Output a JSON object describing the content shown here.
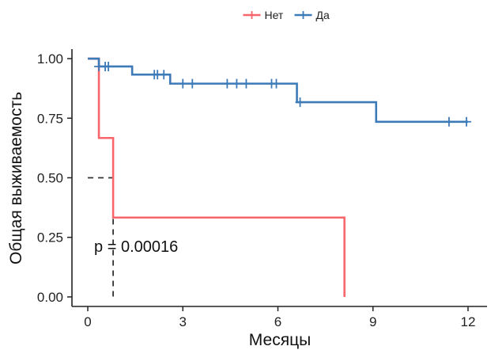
{
  "chart_data": {
    "type": "line",
    "subtype": "kaplan-meier",
    "xlabel": "Месяцы",
    "ylabel": "Общая выживаемость",
    "xlim": [
      -0.5,
      12.6
    ],
    "ylim": [
      -0.04,
      1.04
    ],
    "xticks": [
      0,
      3,
      6,
      9,
      12
    ],
    "yticks": [
      0.0,
      0.25,
      0.5,
      0.75,
      1.0
    ],
    "ytick_labels": [
      "0.00",
      "0.25",
      "0.50",
      "0.75",
      "1.00"
    ],
    "grid": false,
    "legend_position": "top",
    "annotation": "p = 0.00016",
    "annotation_pos": [
      0.2,
      0.19
    ],
    "median_line": {
      "x": 0.8,
      "y": 0.5
    },
    "series": [
      {
        "name": "Нет",
        "color": "#f8656b",
        "steps": [
          [
            0,
            1.0
          ],
          [
            0.35,
            0.667
          ],
          [
            0.8,
            0.333
          ],
          [
            8.1,
            0.0
          ]
        ],
        "end_x": 8.1,
        "censors": []
      },
      {
        "name": "Да",
        "color": "#3d7ab8",
        "steps": [
          [
            0,
            1.0
          ],
          [
            0.35,
            0.967
          ],
          [
            1.4,
            0.933
          ],
          [
            2.6,
            0.895
          ],
          [
            6.6,
            0.817
          ],
          [
            9.1,
            0.735
          ]
        ],
        "end_x": 12.0,
        "censors": [
          [
            0.35,
            0.967
          ],
          [
            0.55,
            0.967
          ],
          [
            0.65,
            0.967
          ],
          [
            2.1,
            0.933
          ],
          [
            2.2,
            0.933
          ],
          [
            2.4,
            0.933
          ],
          [
            3.0,
            0.895
          ],
          [
            3.3,
            0.895
          ],
          [
            4.4,
            0.895
          ],
          [
            4.7,
            0.895
          ],
          [
            5.0,
            0.895
          ],
          [
            5.8,
            0.895
          ],
          [
            5.95,
            0.895
          ],
          [
            6.7,
            0.817
          ],
          [
            11.4,
            0.735
          ],
          [
            11.95,
            0.735
          ]
        ]
      }
    ]
  }
}
